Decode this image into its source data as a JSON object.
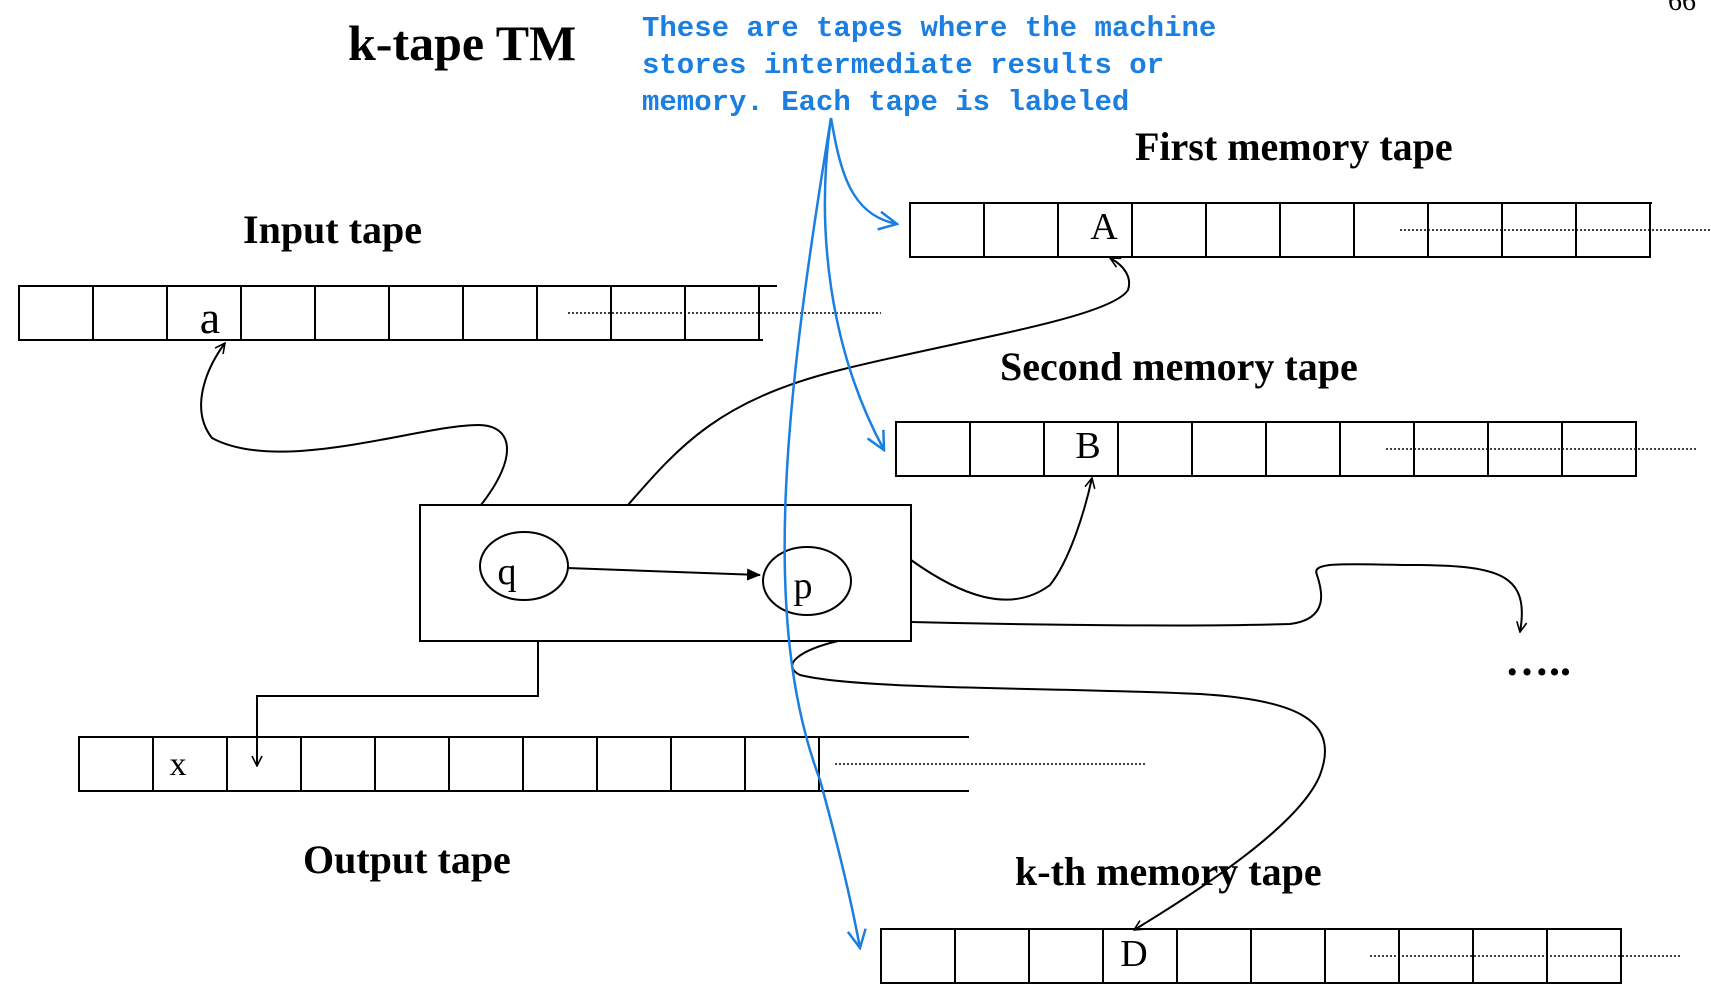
{
  "page_number": "66",
  "title": "k-tape TM",
  "annotation": {
    "lines": [
      "These are tapes where the machine",
      "stores intermediate results or",
      "memory. Each tape is labeled"
    ],
    "color": "#1a7fe0"
  },
  "tapes": {
    "input": {
      "label": "Input tape",
      "symbol": "a"
    },
    "first_memory": {
      "label": "First memory tape",
      "symbol": "A"
    },
    "second_memory": {
      "label": "Second  memory tape",
      "symbol": "B"
    },
    "output": {
      "label": "Output tape",
      "symbol": "x"
    },
    "kth_memory": {
      "label": "k-th memory tape",
      "symbol": "D"
    }
  },
  "control": {
    "state_q": "q",
    "state_p": "p"
  },
  "ellipsis": "….."
}
